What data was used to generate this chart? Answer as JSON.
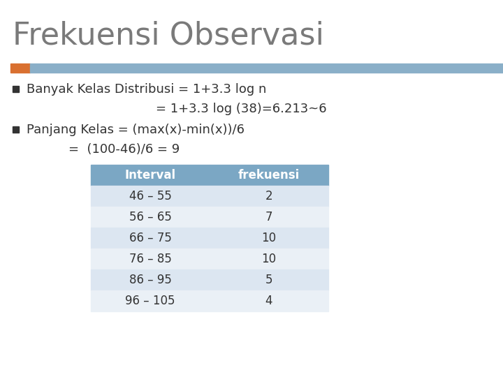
{
  "title": "Frekuensi Observasi",
  "title_color": "#7a7a7a",
  "title_fontsize": 32,
  "bullet_color": "#333333",
  "line1": "Banyak Kelas Distribusi = 1+3.3 log n",
  "line2": "= 1+3.3 log (38)=6.213~6",
  "line3": "Panjang Kelas = (max(x)-min(x))/6",
  "line4": "=  (100-46)/6 = 9",
  "header_bg": "#7ba7c4",
  "header_text_color": "#ffffff",
  "row_bg_odd": "#dce6f1",
  "row_bg_even": "#eaf0f6",
  "table_text_color": "#333333",
  "table_headers": [
    "Interval",
    "frekuensi"
  ],
  "table_rows": [
    [
      "46 – 55",
      "2"
    ],
    [
      "56 – 65",
      "7"
    ],
    [
      "66 – 75",
      "10"
    ],
    [
      "76 – 85",
      "10"
    ],
    [
      "86 – 95",
      "5"
    ],
    [
      "96 – 105",
      "4"
    ]
  ],
  "accent_bar_color": "#d97030",
  "header_bar_color": "#8aafc8",
  "bg_color": "#ffffff",
  "text_fontsize": 13,
  "table_fontsize": 12
}
